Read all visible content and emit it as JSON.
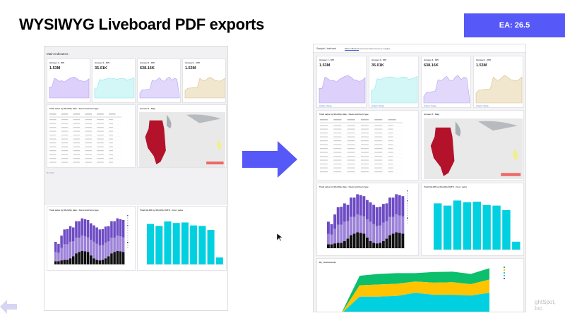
{
  "slide": {
    "title": "WYSIWYG Liveboard PDF exports",
    "badge": "EA: 26.5",
    "footer": "ghtSpot, Inc."
  },
  "colors": {
    "accent": "#5659f7",
    "purple_dark": "#6e4cc4",
    "purple_light": "#9c82d8",
    "black": "#111111",
    "cyan": "#00d0e0",
    "green": "#0bbf6c",
    "yellow": "#ffc300",
    "map_state": "#b3122a"
  },
  "left": {
    "liveboard_title": "Main Indicators",
    "kpis": [
      {
        "title": "Answer 1 - KPI",
        "value": "1.53M",
        "color": "#ddd0fa",
        "stroke": "#b49ff0",
        "trend": [
          0.45,
          0.45,
          0.8,
          0.75,
          0.68,
          0.7,
          0.65,
          0.72,
          0.78,
          0.82,
          0.85,
          0.8,
          0.72,
          0.7,
          0.66,
          0.7,
          0.78
        ]
      },
      {
        "title": "Answer 2 - KPI",
        "value": "35.01K",
        "color": "#d3f6f7",
        "stroke": "#8fe7ea",
        "trend": [
          0.4,
          0.4,
          0.75,
          0.72,
          0.76,
          0.78,
          0.8,
          0.8,
          0.78,
          0.76,
          0.78,
          0.8,
          0.79,
          0.72,
          0.75,
          0.78,
          0.82
        ]
      },
      {
        "title": "Answer 3 - KPI",
        "value": "638.16K",
        "color": "#e1d8fb",
        "stroke": "#b6a2ee",
        "trend": [
          0.2,
          0.33,
          0.33,
          0.35,
          0.36,
          0.72,
          0.68,
          0.75,
          0.82,
          0.7,
          0.68,
          0.8,
          0.85,
          0.72,
          0.8,
          0.76,
          0.1
        ]
      },
      {
        "title": "Answer 4 - KPI",
        "value": "1.53M",
        "color": "#f1e7ce",
        "stroke": "#d9c08b",
        "trend": [
          0.3,
          0.4,
          0.4,
          0.42,
          0.42,
          0.44,
          0.8,
          0.72,
          0.7,
          0.78,
          0.85,
          0.8,
          0.72,
          0.7,
          0.68,
          0.72,
          0.8
        ]
      }
    ],
    "table_title": "Total sales by Monthly date - Facet and item type",
    "map_title": "Answer 5 - Map",
    "footer_note": "Pivot filter"
  },
  "right": {
    "liveboard_title": "Sample Liveboard",
    "tabs": [
      {
        "label": "Main Indicators",
        "active": true
      },
      {
        "label": "Overview Data",
        "active": false
      },
      {
        "label": "Inventory Insights",
        "active": false
      }
    ],
    "kpis": [
      {
        "title": "Answer 1 - KPI",
        "value": "1.53M",
        "neg": false
      },
      {
        "title": "Answer 2 - KPI",
        "value": "35.01K",
        "neg": false
      },
      {
        "title": "Answer 3 - KPI",
        "value": "638.16K",
        "neg": true
      },
      {
        "title": "Answer 4 - KPI",
        "value": "1.53M",
        "neg": false
      }
    ],
    "kpi_footer": "Analyze change",
    "table_title": "Total sales by Monthly date - Facet and item type",
    "map_title": "Answer 5 - Map",
    "stacked_title": "Total sales by Monthly date - Facet and item type",
    "cyan_title": "Total GH.ED by Monthly DATE - Cust_sales",
    "area_title": "By_channelcode"
  },
  "chart_data": [
    {
      "type": "bar",
      "stacked": true,
      "series": [
        {
          "values": [
            0.08,
            0.08,
            0.1,
            0.11,
            0.11,
            0.15,
            0.2,
            0.27,
            0.3,
            0.33,
            0.32,
            0.3,
            0.22,
            0.15,
            0.11,
            0.1,
            0.11,
            0.15,
            0.2,
            0.27,
            0.3,
            0.33,
            0.32,
            0.3
          ]
        },
        {
          "values": [
            0.22,
            0.2,
            0.3,
            0.38,
            0.38,
            0.4,
            0.36,
            0.38,
            0.35,
            0.37,
            0.36,
            0.36,
            0.38,
            0.4,
            0.39,
            0.36,
            0.36,
            0.38,
            0.36,
            0.38,
            0.35,
            0.37,
            0.36,
            0.36
          ]
        },
        {
          "values": [
            0.25,
            0.22,
            0.3,
            0.36,
            0.37,
            0.38,
            0.34,
            0.4,
            0.4,
            0.42,
            0.42,
            0.42,
            0.4,
            0.4,
            0.4,
            0.39,
            0.39,
            0.39,
            0.37,
            0.4,
            0.4,
            0.42,
            0.42,
            0.42
          ]
        }
      ],
      "ylim": [
        0,
        1.2
      ]
    },
    {
      "type": "bar",
      "values": [
        0.82,
        0.78,
        0.87,
        0.84,
        0.85,
        0.79,
        0.78,
        0.7,
        0.14
      ],
      "ylim": [
        0,
        1
      ]
    },
    {
      "type": "area",
      "stacked": true,
      "series": [
        {
          "values": [
            0,
            0.45,
            0.45,
            0.47,
            0.55,
            0.5,
            0.5,
            0.48,
            0.55
          ]
        },
        {
          "values": [
            0,
            0.3,
            0.32,
            0.32,
            0.3,
            0.32,
            0.33,
            0.3,
            0.35
          ]
        },
        {
          "values": [
            0,
            0.25,
            0.28,
            0.28,
            0.22,
            0.28,
            0.28,
            0.27,
            0.3
          ]
        }
      ],
      "ylim": [
        0,
        1.3
      ]
    }
  ]
}
